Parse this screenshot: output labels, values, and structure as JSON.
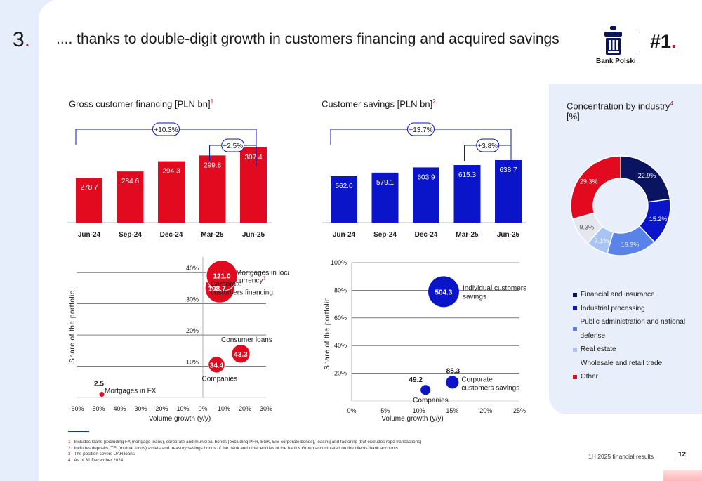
{
  "header": {
    "section_number": "3",
    "section_dot": ".",
    "headline": ".... thanks to double-digit growth in customers financing and acquired savings",
    "rank": "#1",
    "rank_dot": ".",
    "brand_name": "Bank Polski",
    "logo_icon": "pko-bank-logo-icon"
  },
  "colors": {
    "red": "#e10a1e",
    "blue": "#0a14c8",
    "navy": "#0b1460",
    "light_blue": "#5a83ea",
    "pale_blue": "#a9c3f3",
    "panel": "#e8effb"
  },
  "chart_data": [
    {
      "id": "gross_financing",
      "type": "bar",
      "title": "Gross customer financing [PLN bn]",
      "footnote_ref": "1",
      "categories": [
        "Jun-24",
        "Sep-24",
        "Dec-24",
        "Mar-25",
        "Jun-25"
      ],
      "values": [
        278.7,
        284.6,
        294.3,
        299.8,
        307.4
      ],
      "value_labels": [
        "278.7",
        "284.6",
        "294.3",
        "299.8",
        "307.4"
      ],
      "annotations": [
        {
          "from": "Jun-24",
          "to": "Jun-25",
          "label": "+10.3%"
        },
        {
          "from": "Mar-25",
          "to": "Jun-25",
          "label": "+2.5%"
        }
      ]
    },
    {
      "id": "customer_savings",
      "type": "bar",
      "title": "Customer savings [PLN bn]",
      "footnote_ref": "2",
      "categories": [
        "Jun-24",
        "Sep-24",
        "Dec-24",
        "Mar-25",
        "Jun-25"
      ],
      "values": [
        562.0,
        579.1,
        603.9,
        615.3,
        638.7
      ],
      "value_labels": [
        "562.0",
        "579.1",
        "603.9",
        "615.3",
        "638.7"
      ],
      "annotations": [
        {
          "from": "Jun-24",
          "to": "Jun-25",
          "label": "+13.7%"
        },
        {
          "from": "Mar-25",
          "to": "Jun-25",
          "label": "+3.8%"
        }
      ]
    },
    {
      "id": "industry_concentration",
      "type": "pie",
      "title": "Concentration by industry",
      "title_line2": "[%]",
      "footnote_ref": "4",
      "slices": [
        {
          "name": "Financial and insurance",
          "value": 22.9,
          "label": "22.9%",
          "color": "#0b1460"
        },
        {
          "name": "Industrial processing",
          "value": 15.2,
          "label": "15.2%",
          "color": "#0a14c8"
        },
        {
          "name": "Public administration and national defense",
          "value": 16.3,
          "label": "16.3%",
          "color": "#5a83ea"
        },
        {
          "name": "Real estate",
          "value": 7.1,
          "label": "7.1%",
          "color": "#a9c3f3"
        },
        {
          "name": "Wholesale and retail trade",
          "value": 9.3,
          "label": "9.3%",
          "color": "#e6e6ee"
        },
        {
          "name": "Other",
          "value": 29.3,
          "label": "29.3%",
          "color": "#e10a1e"
        }
      ]
    },
    {
      "id": "financing_bubbles",
      "type": "scatter",
      "xlabel": "Volume growth (y/y)",
      "ylabel": "Share of the portfolio",
      "xticks": [
        "-60%",
        "-50%",
        "-40%",
        "-30%",
        "-20%",
        "-10%",
        "0%",
        "10%",
        "20%",
        "30%"
      ],
      "yticks": [
        "10%",
        "20%",
        "30%",
        "40%"
      ],
      "xlim": [
        -60,
        30
      ],
      "ylim": [
        0,
        45
      ],
      "points": [
        {
          "name": "Mortgages in local currency",
          "footnote_ref": "3",
          "x": 9,
          "y": 39,
          "value": "121.0"
        },
        {
          "name": "Corporate customers financing",
          "x": 8,
          "y": 35,
          "value": "108.7"
        },
        {
          "name": "Consumer loans",
          "x": 18,
          "y": 14,
          "value": "43.3"
        },
        {
          "name": "Companies",
          "x": 6.5,
          "y": 10.5,
          "value": "34.4"
        },
        {
          "name": "Mortgages in  FX",
          "x": -48,
          "y": 1,
          "value": "2.5"
        }
      ]
    },
    {
      "id": "savings_bubbles",
      "type": "scatter",
      "xlabel": "Volume growth (y/y)",
      "ylabel": "Share of the portfolio",
      "xticks": [
        "0%",
        "5%",
        "10%",
        "15%",
        "20%",
        "25%"
      ],
      "yticks": [
        "20%",
        "40%",
        "60%",
        "80%",
        "100%"
      ],
      "xlim": [
        0,
        25
      ],
      "ylim": [
        0,
        100
      ],
      "points": [
        {
          "name": "Individual customers savings",
          "x": 13.7,
          "y": 79,
          "value": "504.3"
        },
        {
          "name": "Corporate customers savings",
          "x": 15,
          "y": 13.5,
          "value": "85.3"
        },
        {
          "name": "Companies",
          "x": 11,
          "y": 8,
          "value": "49.2"
        }
      ]
    }
  ],
  "footnotes": [
    {
      "n": "1",
      "text": "Includes loans (excluding FX mortgage loans), corporate and municipal bonds (excluding PFR, BGK, EIB corporate bonds), leasing and factoring (but excludes repo transactions)"
    },
    {
      "n": "2",
      "text": "Includes deposits, TFI (mutual funds) assets and treasury savings bonds of the bank and other entities of the bank's Group accumulated on the clients' bank accounts"
    },
    {
      "n": "3",
      "text": "The position covers UAH loans"
    },
    {
      "n": "4",
      "text": "As of 31 December 2024"
    }
  ],
  "footer": {
    "label": "1H 2025 financial results",
    "page": "12"
  }
}
